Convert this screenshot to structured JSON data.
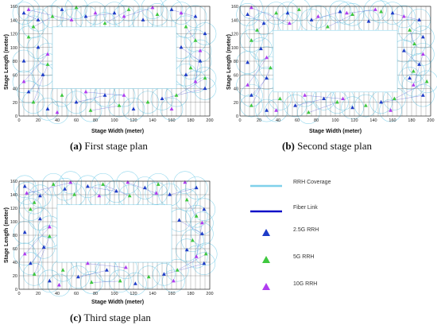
{
  "colors": {
    "coverage": "#7fd0ea",
    "fiber": "#1010c8",
    "rrh_2_5g": "#1e3cc8",
    "rrh_5g": "#3ec83e",
    "rrh_10g": "#b03cf0",
    "grid": "#555555"
  },
  "legend": {
    "items": [
      {
        "label": "RRH Coverage",
        "icon": "line-light-blue"
      },
      {
        "label": "Fiber Link",
        "icon": "line-dark-blue"
      },
      {
        "label": "2.5G RRH",
        "icon": "triangle-blue"
      },
      {
        "label": "5G RRH",
        "icon": "triangle-green"
      },
      {
        "label": "10G RRH",
        "icon": "triangle-purple"
      }
    ]
  },
  "chart_data": [
    {
      "type": "scatter",
      "caption_letter": "(a)",
      "caption_text": "First stage plan",
      "xlabel": "Stage Width (meter)",
      "ylabel": "Stage Length (meter)",
      "xlim": [
        0,
        200
      ],
      "ylim": [
        0,
        160
      ],
      "xticks": [
        0,
        20,
        40,
        60,
        80,
        100,
        120,
        140,
        160,
        180,
        200
      ],
      "yticks": [
        0,
        20,
        40,
        60,
        80,
        100,
        120,
        140,
        160
      ],
      "open_area": {
        "x": [
          35,
          165
        ],
        "y": [
          40,
          130
        ]
      },
      "series": [
        {
          "name": "2.5G RRH",
          "points": [
            [
              5,
              150
            ],
            [
              20,
              140
            ],
            [
              45,
              155
            ],
            [
              70,
              145
            ],
            [
              100,
              150
            ],
            [
              130,
              140
            ],
            [
              160,
              155
            ],
            [
              185,
              145
            ],
            [
              195,
              120
            ],
            [
              170,
              100
            ],
            [
              190,
              80
            ],
            [
              175,
              60
            ],
            [
              195,
              40
            ],
            [
              150,
              25
            ],
            [
              120,
              10
            ],
            [
              90,
              30
            ],
            [
              60,
              20
            ],
            [
              30,
              10
            ],
            [
              10,
              35
            ],
            [
              25,
              60
            ],
            [
              5,
              80
            ],
            [
              20,
              100
            ]
          ]
        },
        {
          "name": "5G RRH",
          "points": [
            [
              15,
              130
            ],
            [
              35,
              145
            ],
            [
              60,
              158
            ],
            [
              90,
              135
            ],
            [
              115,
              155
            ],
            [
              145,
              148
            ],
            [
              175,
              130
            ],
            [
              185,
              110
            ],
            [
              180,
              70
            ],
            [
              195,
              55
            ],
            [
              165,
              30
            ],
            [
              135,
              20
            ],
            [
              105,
              15
            ],
            [
              75,
              8
            ],
            [
              45,
              30
            ],
            [
              15,
              20
            ],
            [
              30,
              75
            ],
            [
              10,
              115
            ]
          ]
        },
        {
          "name": "10G RRH",
          "points": [
            [
              10,
              155
            ],
            [
              55,
              140
            ],
            [
              80,
              150
            ],
            [
              110,
              145
            ],
            [
              140,
              158
            ],
            [
              170,
              150
            ],
            [
              190,
              95
            ],
            [
              185,
              50
            ],
            [
              160,
              10
            ],
            [
              110,
              30
            ],
            [
              70,
              35
            ],
            [
              40,
              5
            ],
            [
              5,
              50
            ],
            [
              30,
              90
            ]
          ]
        }
      ]
    },
    {
      "type": "scatter",
      "caption_letter": "(b)",
      "caption_text": "Second stage plan",
      "xlabel": "Stage Width (meter)",
      "ylabel": "Stage Length (meter)",
      "xlim": [
        0,
        200
      ],
      "ylim": [
        0,
        160
      ],
      "xticks": [
        0,
        20,
        40,
        60,
        80,
        100,
        120,
        140,
        160,
        180,
        200
      ],
      "yticks": [
        0,
        20,
        40,
        60,
        80,
        100,
        120,
        140,
        160
      ],
      "open_area": {
        "x": [
          35,
          165
        ],
        "y": [
          35,
          125
        ]
      },
      "series": [
        {
          "name": "2.5G RRH",
          "points": [
            [
              8,
              148
            ],
            [
              25,
              135
            ],
            [
              50,
              150
            ],
            [
              75,
              140
            ],
            [
              105,
              152
            ],
            [
              135,
              138
            ],
            [
              160,
              150
            ],
            [
              188,
              140
            ],
            [
              192,
              115
            ],
            [
              172,
              95
            ],
            [
              188,
              75
            ],
            [
              178,
              55
            ],
            [
              192,
              30
            ],
            [
              148,
              20
            ],
            [
              118,
              12
            ],
            [
              88,
              25
            ],
            [
              58,
              15
            ],
            [
              28,
              8
            ],
            [
              12,
              30
            ],
            [
              28,
              55
            ],
            [
              8,
              78
            ],
            [
              22,
              98
            ]
          ]
        },
        {
          "name": "5G RRH",
          "points": [
            [
              18,
              125
            ],
            [
              38,
              150
            ],
            [
              62,
              155
            ],
            [
              92,
              130
            ],
            [
              118,
              148
            ],
            [
              148,
              152
            ],
            [
              178,
              125
            ],
            [
              183,
              105
            ],
            [
              182,
              65
            ],
            [
              196,
              50
            ],
            [
              162,
              25
            ],
            [
              132,
              15
            ],
            [
              102,
              20
            ],
            [
              72,
              5
            ],
            [
              42,
              25
            ],
            [
              12,
              15
            ],
            [
              32,
              70
            ],
            [
              12,
              110
            ]
          ]
        },
        {
          "name": "10G RRH",
          "points": [
            [
              12,
              158
            ],
            [
              52,
              135
            ],
            [
              82,
              145
            ],
            [
              112,
              150
            ],
            [
              142,
              155
            ],
            [
              172,
              145
            ],
            [
              192,
              90
            ],
            [
              182,
              45
            ],
            [
              158,
              8
            ],
            [
              108,
              25
            ],
            [
              68,
              30
            ],
            [
              38,
              8
            ],
            [
              8,
              45
            ],
            [
              28,
              85
            ]
          ]
        }
      ]
    },
    {
      "type": "scatter",
      "caption_letter": "(c)",
      "caption_text": "Third stage plan",
      "xlabel": "Stage Width (meter)",
      "ylabel": "Stage Length (meter)",
      "xlim": [
        0,
        200
      ],
      "ylim": [
        0,
        160
      ],
      "xticks": [
        0,
        20,
        40,
        60,
        80,
        100,
        120,
        140,
        160,
        180,
        200
      ],
      "yticks": [
        0,
        20,
        40,
        60,
        80,
        100,
        120,
        140,
        160
      ],
      "open_area": {
        "x": [
          40,
          160
        ],
        "y": [
          40,
          125
        ]
      },
      "series": [
        {
          "name": "2.5G RRH",
          "points": [
            [
              6,
              152
            ],
            [
              22,
              138
            ],
            [
              48,
              148
            ],
            [
              72,
              152
            ],
            [
              102,
              145
            ],
            [
              132,
              150
            ],
            [
              158,
              140
            ],
            [
              186,
              150
            ],
            [
              194,
              118
            ],
            [
              168,
              102
            ],
            [
              192,
              82
            ],
            [
              176,
              58
            ],
            [
              194,
              38
            ],
            [
              152,
              22
            ],
            [
              122,
              8
            ],
            [
              92,
              28
            ],
            [
              62,
              18
            ],
            [
              32,
              12
            ],
            [
              12,
              38
            ],
            [
              26,
              62
            ],
            [
              6,
              84
            ],
            [
              22,
              104
            ]
          ]
        },
        {
          "name": "5G RRH",
          "points": [
            [
              16,
              128
            ],
            [
              36,
              155
            ],
            [
              58,
              140
            ],
            [
              88,
              155
            ],
            [
              116,
              138
            ],
            [
              146,
              155
            ],
            [
              176,
              132
            ],
            [
              186,
              108
            ],
            [
              182,
              72
            ],
            [
              196,
              52
            ],
            [
              166,
              28
            ],
            [
              136,
              18
            ],
            [
              106,
              12
            ],
            [
              76,
              10
            ],
            [
              46,
              28
            ],
            [
              16,
              22
            ],
            [
              32,
              78
            ],
            [
              12,
              118
            ]
          ]
        },
        {
          "name": "10G RRH",
          "points": [
            [
              8,
              142
            ],
            [
              54,
              158
            ],
            [
              84,
              138
            ],
            [
              114,
              158
            ],
            [
              144,
              142
            ],
            [
              174,
              158
            ],
            [
              192,
              98
            ],
            [
              186,
              48
            ],
            [
              162,
              12
            ],
            [
              112,
              32
            ],
            [
              72,
              38
            ],
            [
              42,
              6
            ],
            [
              6,
              52
            ],
            [
              32,
              92
            ]
          ]
        }
      ]
    }
  ]
}
